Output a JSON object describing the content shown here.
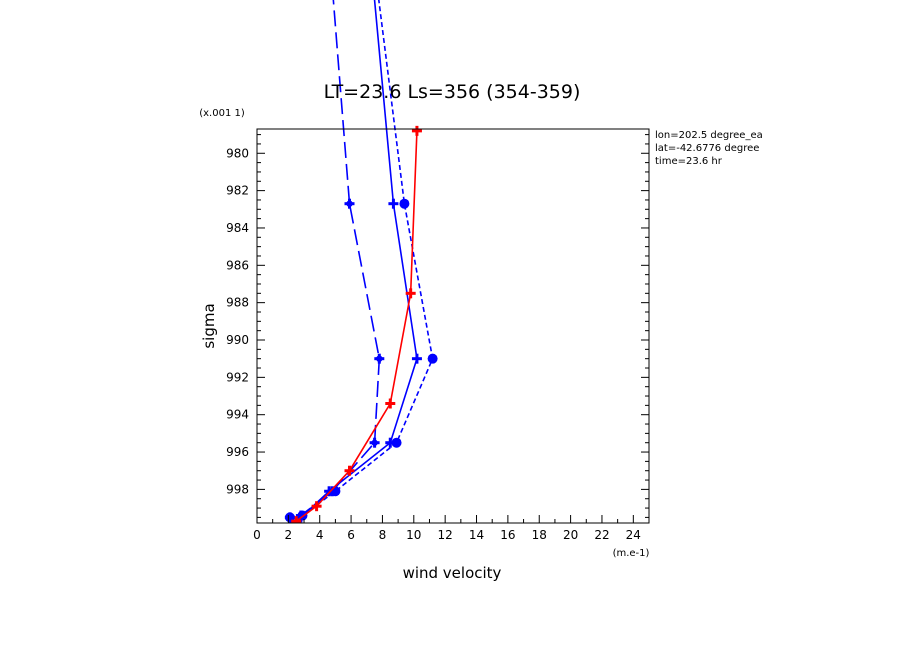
{
  "chart_data": {
    "type": "line",
    "title": "LT=23.6  Ls=356 (354-359)",
    "xlabel": "wind velocity",
    "ylabel": "sigma",
    "x_units": "(m.e-1)",
    "y_scale_label": "(x.001 1)",
    "xlim": [
      0,
      25
    ],
    "ylim": [
      999.8,
      978.7
    ],
    "y_inverted": true,
    "x_ticks": [
      0,
      2,
      4,
      6,
      8,
      10,
      12,
      14,
      16,
      18,
      20,
      22,
      24
    ],
    "y_ticks": [
      980,
      982,
      984,
      986,
      988,
      990,
      992,
      994,
      996,
      998
    ],
    "info_lines": [
      "lon=202.5 degree_ea",
      "lat=-42.6776 degree",
      "time=23.6 hr"
    ],
    "grid": false,
    "series": [
      {
        "style": "long-dash",
        "color": "#0000ff",
        "marker": "cross",
        "points": [
          [
            4.7,
            970.0
          ],
          [
            5.9,
            982.7
          ],
          [
            7.8,
            991.0
          ],
          [
            7.5,
            995.5
          ],
          [
            4.8,
            998.1
          ],
          [
            2.8,
            999.4
          ],
          [
            2.1,
            999.5
          ]
        ]
      },
      {
        "style": "solid",
        "color": "#0000ff",
        "marker": "plus",
        "points": [
          [
            7.3,
            970.0
          ],
          [
            8.7,
            982.7
          ],
          [
            10.2,
            991.0
          ],
          [
            8.5,
            995.5
          ],
          [
            4.6,
            998.1
          ],
          [
            2.8,
            999.5
          ],
          [
            2.1,
            999.5
          ]
        ]
      },
      {
        "style": "dashed",
        "color": "#0000ff",
        "marker": "circle",
        "points": [
          [
            7.5,
            970.0
          ],
          [
            9.4,
            982.7
          ],
          [
            11.2,
            991.0
          ],
          [
            8.9,
            995.5
          ],
          [
            5.0,
            998.1
          ],
          [
            2.9,
            999.4
          ],
          [
            2.1,
            999.5
          ]
        ]
      },
      {
        "style": "solid",
        "color": "#ff0000",
        "marker": "plus",
        "points": [
          [
            10.2,
            978.8
          ],
          [
            9.8,
            987.5
          ],
          [
            8.5,
            993.4
          ],
          [
            5.9,
            997.0
          ],
          [
            3.8,
            998.9
          ],
          [
            2.5,
            999.7
          ]
        ]
      }
    ]
  }
}
